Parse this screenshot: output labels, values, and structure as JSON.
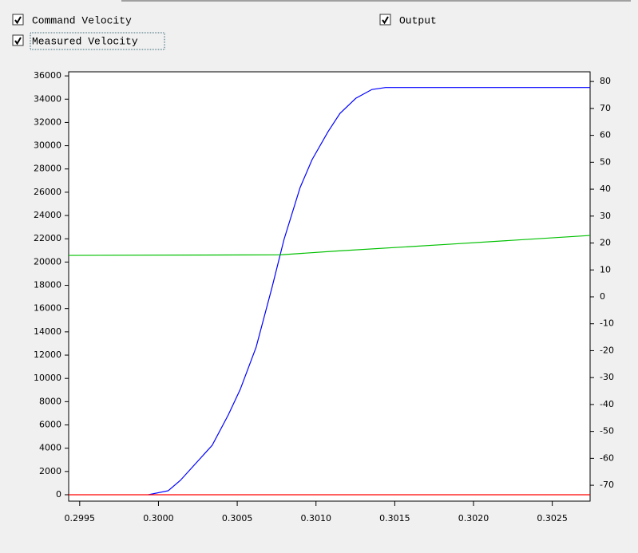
{
  "chart_data": {
    "type": "line",
    "xlim": [
      0.29943,
      0.30274
    ],
    "xticks": [
      0.2995,
      {
        "value": 0.3,
        "label": "0.3000"
      },
      0.3005,
      {
        "value": 0.301,
        "label": "0.3010"
      },
      0.3015,
      {
        "value": 0.302,
        "label": "0.3020"
      },
      0.3025
    ],
    "ylim": [
      -550,
      36350
    ],
    "yticks": [
      0,
      2000,
      4000,
      6000,
      8000,
      10000,
      12000,
      14000,
      16000,
      18000,
      20000,
      22000,
      24000,
      26000,
      28000,
      30000,
      32000,
      34000,
      36000
    ],
    "y2lim": [
      -75.9,
      83.6
    ],
    "y2ticks": [
      80,
      70,
      60,
      50,
      40,
      30,
      20,
      10,
      0,
      -10,
      -20,
      -30,
      -40,
      -50,
      -60,
      -70
    ],
    "series": [
      {
        "name": "Command Velocity",
        "color": "#0000ff",
        "x": [
          0.299936,
          0.300062,
          0.300139,
          0.30024,
          0.300341,
          0.300443,
          0.300519,
          0.30062,
          0.300721,
          0.300797,
          0.300899,
          0.300975,
          0.301076,
          0.301152,
          0.301253,
          0.301355,
          0.301441,
          0.30274
        ],
        "values": [
          0,
          343,
          1234,
          2743,
          4251,
          6856,
          9050,
          12684,
          17826,
          21940,
          26397,
          28797,
          31196,
          32773,
          34076,
          34830,
          35000,
          35000
        ]
      },
      {
        "name": "Output",
        "color": "#00c000",
        "axis": "y2",
        "x": [
          0.29943,
          0.300772,
          0.301127,
          0.301836,
          0.30274
        ],
        "values": [
          15.4,
          15.6,
          17,
          19.5,
          22.8
        ]
      },
      {
        "name": "Measured Velocity",
        "color": "#ff0000",
        "x": [
          0.29943,
          0.30274
        ],
        "values": [
          0,
          0
        ]
      }
    ]
  }
}
